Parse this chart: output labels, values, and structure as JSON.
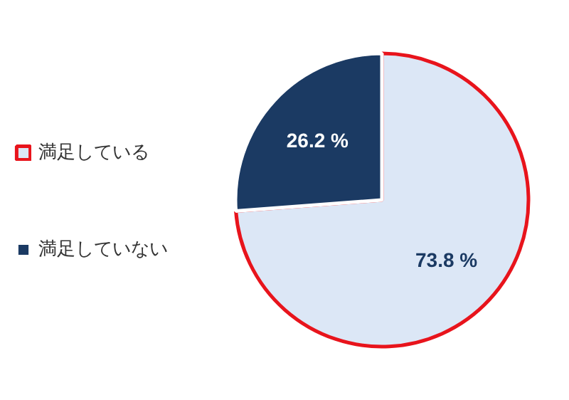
{
  "chart_data": {
    "type": "pie",
    "categories": [
      "満足している",
      "満足していない"
    ],
    "values": [
      73.8,
      26.2
    ],
    "colors": [
      "#dce7f6",
      "#1b3a63"
    ],
    "value_labels": [
      "73.8 %",
      "26.2 %"
    ],
    "legend": "left"
  }
}
